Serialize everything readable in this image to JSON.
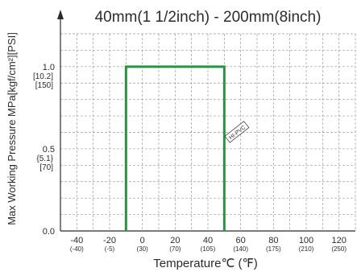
{
  "chart_data": {
    "type": "line",
    "title": "40mm(1 1/2inch) - 200mm(8inch)",
    "xlabel": "Temperature℃ (℉)",
    "ylabel": "Max Working Pressure MPa[kgf/cm²][PSI]",
    "xlim": [
      -50,
      130
    ],
    "ylim": [
      0,
      1.2
    ],
    "grid": true,
    "x_ticks": [
      {
        "value": -40,
        "label": "-40",
        "sub": "(-40)"
      },
      {
        "value": -20,
        "label": "-20",
        "sub": "(-5)"
      },
      {
        "value": 0,
        "label": "0",
        "sub": "(30)"
      },
      {
        "value": 20,
        "label": "20",
        "sub": "(70)"
      },
      {
        "value": 40,
        "label": "40",
        "sub": "(105)"
      },
      {
        "value": 60,
        "label": "60",
        "sub": "(140)"
      },
      {
        "value": 80,
        "label": "80",
        "sub": "(175)"
      },
      {
        "value": 100,
        "label": "100",
        "sub": "(210)"
      },
      {
        "value": 120,
        "label": "120",
        "sub": "(250)"
      }
    ],
    "y_ticks": [
      {
        "value": 0,
        "label": "0.0",
        "sub": []
      },
      {
        "value": 0.5,
        "label": "0.5",
        "sub": [
          "{5.1}",
          "[70]"
        ]
      },
      {
        "value": 1.0,
        "label": "1.0",
        "sub": [
          "[10.2]",
          "[150]"
        ]
      }
    ],
    "series": [
      {
        "name": "HI-PVC",
        "color": "#1e9a3c",
        "x": [
          -10,
          -10,
          50,
          50
        ],
        "y": [
          0,
          1.0,
          1.0,
          0
        ]
      }
    ]
  }
}
